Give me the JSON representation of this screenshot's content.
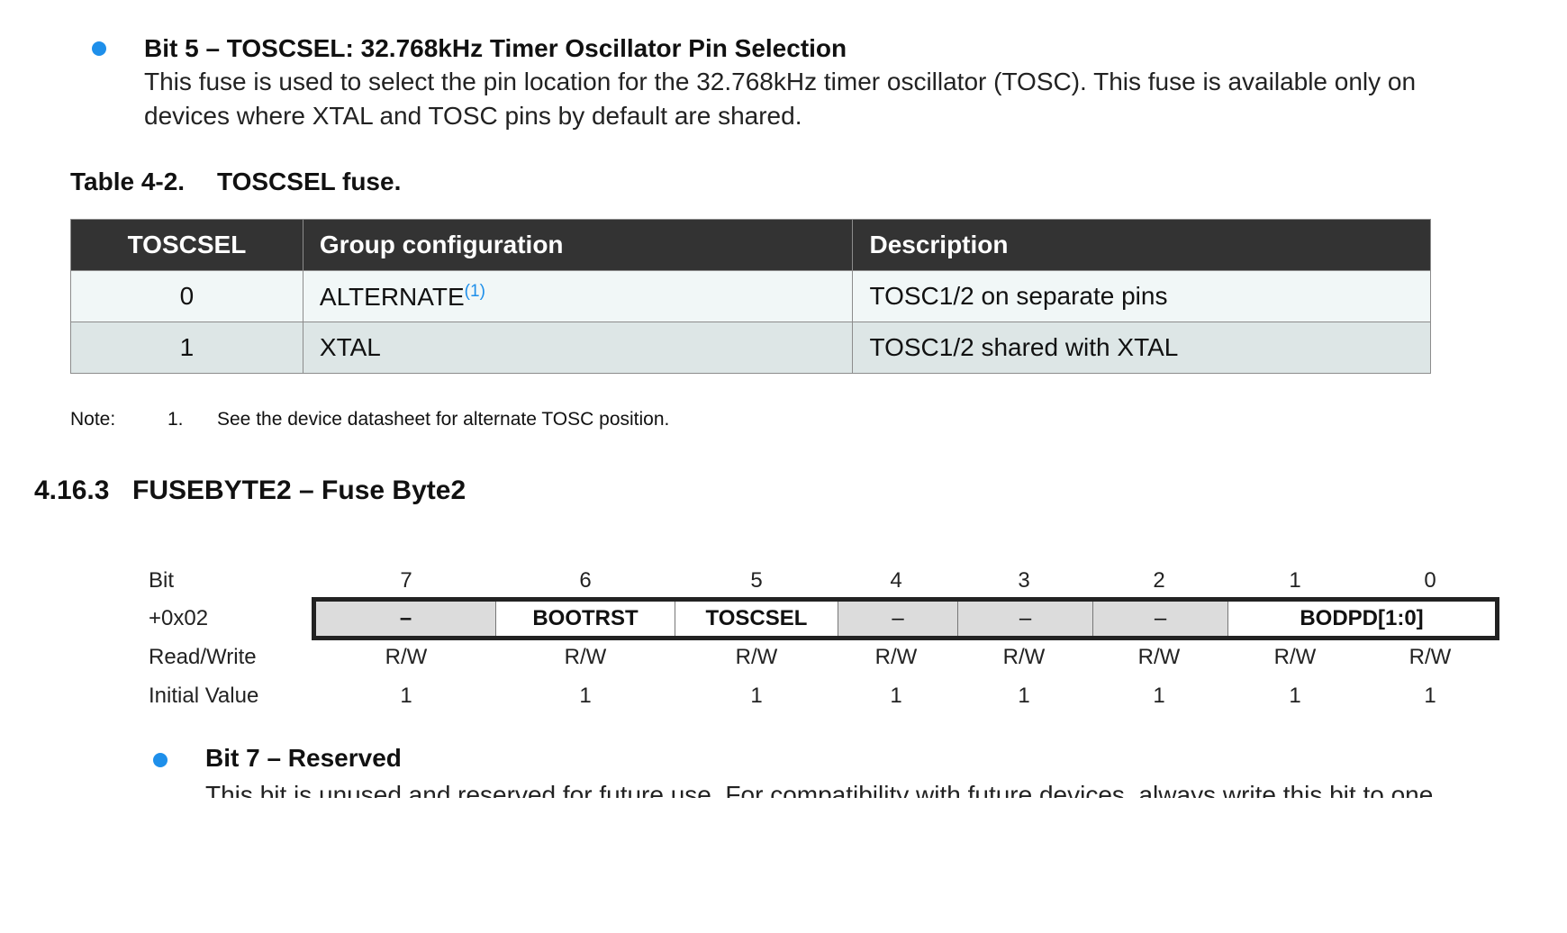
{
  "bit5": {
    "title": "Bit 5 – TOSCSEL: 32.768kHz Timer Oscillator Pin Selection",
    "body": "This fuse is used to select the pin location for the 32.768kHz timer oscillator (TOSC). This fuse is available only on devices where XTAL and TOSC pins by default are shared."
  },
  "table": {
    "caption_number": "Table 4-2.",
    "caption_title": "TOSCSEL fuse.",
    "headers": [
      "TOSCSEL",
      "Group configuration",
      "Description"
    ],
    "rows": [
      {
        "value": "0",
        "group": "ALTERNATE",
        "group_sup": "(1)",
        "description": "TOSC1/2 on separate pins"
      },
      {
        "value": "1",
        "group": "XTAL",
        "group_sup": "",
        "description": "TOSC1/2 shared with XTAL"
      }
    ]
  },
  "note": {
    "label": "Note:",
    "number": "1.",
    "text": "See the device datasheet for alternate TOSC position."
  },
  "section": {
    "number": "4.16.3",
    "title": "FUSEBYTE2 – Fuse Byte2"
  },
  "register": {
    "row_labels": {
      "bit": "Bit",
      "offset": "+0x02",
      "access": "Read/Write",
      "initial": "Initial Value"
    },
    "bits": [
      "7",
      "6",
      "5",
      "4",
      "3",
      "2",
      "1",
      "0"
    ],
    "fields": [
      "–",
      "BOOTRST",
      "TOSCSEL",
      "–",
      "–",
      "–",
      "BODPD[1:0]"
    ],
    "access": [
      "R/W",
      "R/W",
      "R/W",
      "R/W",
      "R/W",
      "R/W",
      "R/W",
      "R/W"
    ],
    "initial": [
      "1",
      "1",
      "1",
      "1",
      "1",
      "1",
      "1",
      "1"
    ]
  },
  "bit7": {
    "title": "Bit 7 – Reserved",
    "body": "This bit is unused and reserved for future use. For compatibility with future devices, always write this bit to one"
  },
  "colors": {
    "bullet": "#1e8fea",
    "table_header": "#333333",
    "row_even": "#f1f7f7",
    "row_odd": "#dde6e6",
    "reserved_field": "#dcdcdc"
  }
}
